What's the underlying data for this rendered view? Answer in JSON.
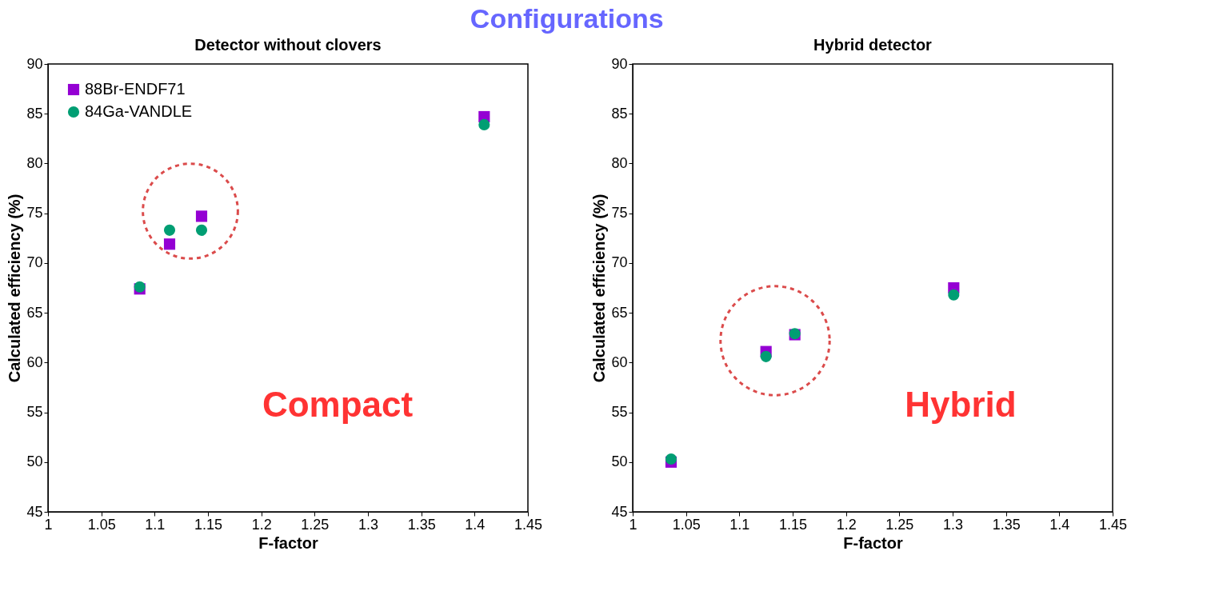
{
  "chart_data": [
    {
      "type": "scatter",
      "title": "Detector without clovers",
      "xlabel": "F-factor",
      "ylabel": "Calculated efficiency (%)",
      "xlim": [
        1,
        1.45
      ],
      "xticks": [
        1,
        1.05,
        1.1,
        1.15,
        1.2,
        1.25,
        1.3,
        1.35,
        1.4,
        1.45
      ],
      "ylim": [
        45,
        90
      ],
      "yticks": [
        45,
        50,
        55,
        60,
        65,
        70,
        75,
        80,
        85,
        90
      ],
      "grid": false,
      "legend": "top left",
      "annotations": [
        "Compact"
      ],
      "series": [
        {
          "name": "88Br-ENDF71",
          "color": "#9400d3",
          "marker": "square",
          "x": [
            1.086,
            1.114,
            1.144,
            1.409
          ],
          "values": [
            67.4,
            71.9,
            74.7,
            84.7
          ]
        },
        {
          "name": "84Ga-VANDLE",
          "color": "#009e73",
          "marker": "circle",
          "x": [
            1.086,
            1.114,
            1.144,
            1.409
          ],
          "values": [
            67.6,
            73.3,
            73.3,
            83.9
          ]
        }
      ]
    },
    {
      "type": "scatter",
      "title": "Hybrid detector",
      "xlabel": "F-factor",
      "ylabel": "Calculated efficiency (%)",
      "xlim": [
        1,
        1.45
      ],
      "xticks": [
        1,
        1.05,
        1.1,
        1.15,
        1.2,
        1.25,
        1.3,
        1.35,
        1.4,
        1.45
      ],
      "ylim": [
        45,
        90
      ],
      "yticks": [
        45,
        50,
        55,
        60,
        65,
        70,
        75,
        80,
        85,
        90
      ],
      "grid": false,
      "legend": "top left",
      "annotations": [
        "Hybrid",
        "Configurations"
      ],
      "series": [
        {
          "name": "88Br-ENDF71",
          "color": "#9400d3",
          "marker": "square",
          "x": [
            1.036,
            1.125,
            1.152,
            1.301
          ],
          "values": [
            50.0,
            61.1,
            62.8,
            67.5
          ]
        },
        {
          "name": "84Ga-VANDLE",
          "color": "#009e73",
          "marker": "circle",
          "x": [
            1.036,
            1.125,
            1.152,
            1.301
          ],
          "values": [
            50.3,
            60.6,
            62.9,
            66.8
          ]
        }
      ]
    }
  ]
}
